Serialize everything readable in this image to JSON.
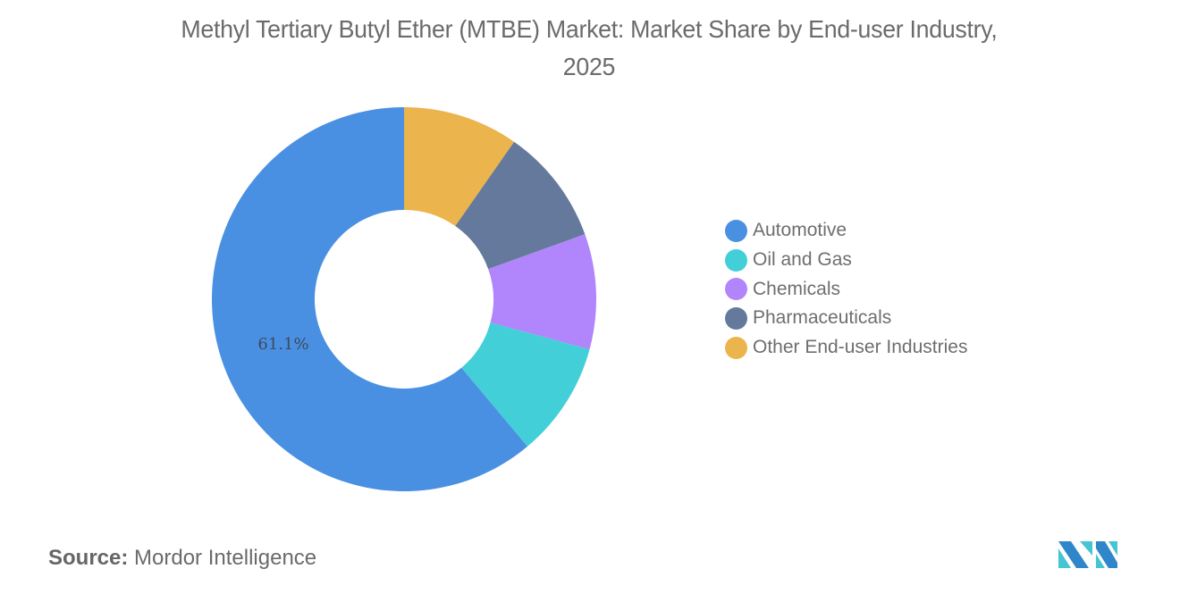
{
  "header": {
    "title_line1": "Methyl Tertiary Butyl Ether (MTBE) Market: Market Share by End-user Industry,",
    "title_line2": "2025"
  },
  "chart_data": {
    "type": "pie",
    "variant": "donut",
    "title": "Methyl Tertiary Butyl Ether (MTBE) Market: Market Share by End-user Industry, 2025",
    "categories": [
      "Automotive",
      "Oil and Gas",
      "Chemicals",
      "Pharmaceuticals",
      "Other End-user Industries"
    ],
    "values": [
      61.1,
      9.7,
      9.7,
      9.8,
      9.7
    ],
    "colors": [
      "#4a90e2",
      "#42cfd8",
      "#b185fb",
      "#64799b",
      "#ebb44c"
    ],
    "data_labels": [
      "61.1%",
      "",
      "",
      "",
      ""
    ],
    "unit": "%",
    "legend_position": "right",
    "start_angle_deg": 0,
    "direction": "counterclockwise"
  },
  "legend": {
    "items": [
      {
        "label": "Automotive",
        "color": "#4a90e2"
      },
      {
        "label": "Oil and Gas",
        "color": "#42cfd8"
      },
      {
        "label": "Chemicals",
        "color": "#b185fb"
      },
      {
        "label": "Pharmaceuticals",
        "color": "#64799b"
      },
      {
        "label": "Other End-user Industries",
        "color": "#ebb44c"
      }
    ]
  },
  "footer": {
    "source_key": "Source:",
    "source_value": "Mordor Intelligence",
    "logo_icon": "mordor-intelligence-logo-icon"
  }
}
